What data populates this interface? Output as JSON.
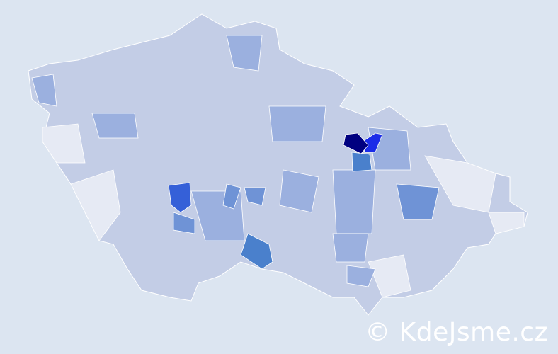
{
  "watermark": "© KdeJsme.cz",
  "colors": {
    "background": "#dce5f1",
    "base_fill": "#c3cde6",
    "light_fill": "#e6eaf4",
    "medium_fill": "#9bb0df",
    "strong_fill": "#6f93d6",
    "darker_fill": "#4a80cc",
    "highest_fill": "#000080",
    "high_fill": "#1a2be8",
    "high2_fill": "#3560d8",
    "border": "#ffffff"
  }
}
